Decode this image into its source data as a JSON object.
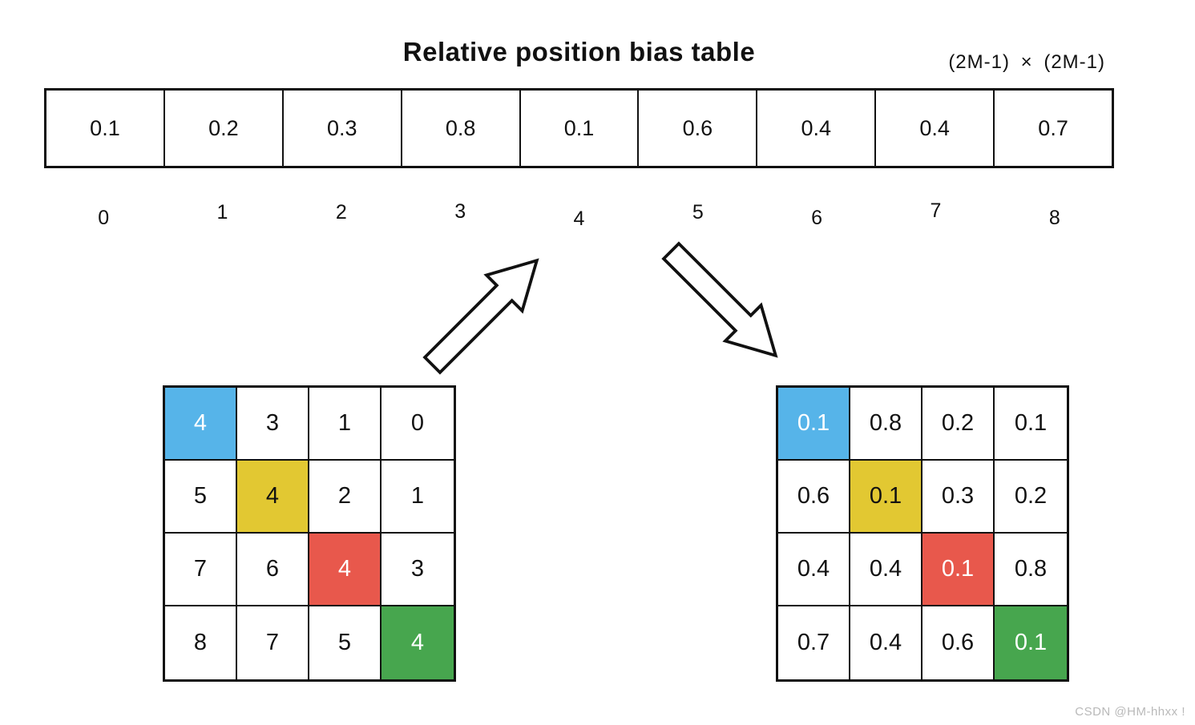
{
  "title": "Relative position bias table",
  "dims_label": "(2M-1) × (2M-1)",
  "palette": {
    "blue": "#56B4E9",
    "yellow": "#E2C832",
    "red": "#E8584C",
    "green": "#47A64E",
    "cell_text_dark": "#111111",
    "cell_text_light": "#ffffff",
    "border": "#111111",
    "watermark_gray": "#b9b9b9"
  },
  "bias_table": {
    "values": [
      "0.1",
      "0.2",
      "0.3",
      "0.8",
      "0.1",
      "0.6",
      "0.4",
      "0.4",
      "0.7"
    ],
    "indices": [
      "0",
      "1",
      "2",
      "3",
      "4",
      "5",
      "6",
      "7",
      "8"
    ]
  },
  "index_matrix": {
    "rows": [
      [
        {
          "v": "4",
          "bg": "blue",
          "fg": "light"
        },
        {
          "v": "3"
        },
        {
          "v": "1"
        },
        {
          "v": "0"
        }
      ],
      [
        {
          "v": "5"
        },
        {
          "v": "4",
          "bg": "yellow",
          "fg": "dark"
        },
        {
          "v": "2"
        },
        {
          "v": "1"
        }
      ],
      [
        {
          "v": "7"
        },
        {
          "v": "6"
        },
        {
          "v": "4",
          "bg": "red",
          "fg": "light"
        },
        {
          "v": "3"
        }
      ],
      [
        {
          "v": "8"
        },
        {
          "v": "7"
        },
        {
          "v": "5"
        },
        {
          "v": "4",
          "bg": "green",
          "fg": "light"
        }
      ]
    ]
  },
  "bias_matrix": {
    "rows": [
      [
        {
          "v": "0.1",
          "bg": "blue",
          "fg": "light"
        },
        {
          "v": "0.8"
        },
        {
          "v": "0.2"
        },
        {
          "v": "0.1"
        }
      ],
      [
        {
          "v": "0.6"
        },
        {
          "v": "0.1",
          "bg": "yellow",
          "fg": "dark"
        },
        {
          "v": "0.3"
        },
        {
          "v": "0.2"
        }
      ],
      [
        {
          "v": "0.4"
        },
        {
          "v": "0.4"
        },
        {
          "v": "0.1",
          "bg": "red",
          "fg": "light"
        },
        {
          "v": "0.8"
        }
      ],
      [
        {
          "v": "0.7"
        },
        {
          "v": "0.4"
        },
        {
          "v": "0.6"
        },
        {
          "v": "0.1",
          "bg": "green",
          "fg": "light"
        }
      ]
    ]
  },
  "watermark": "CSDN @HM-hhxx !"
}
